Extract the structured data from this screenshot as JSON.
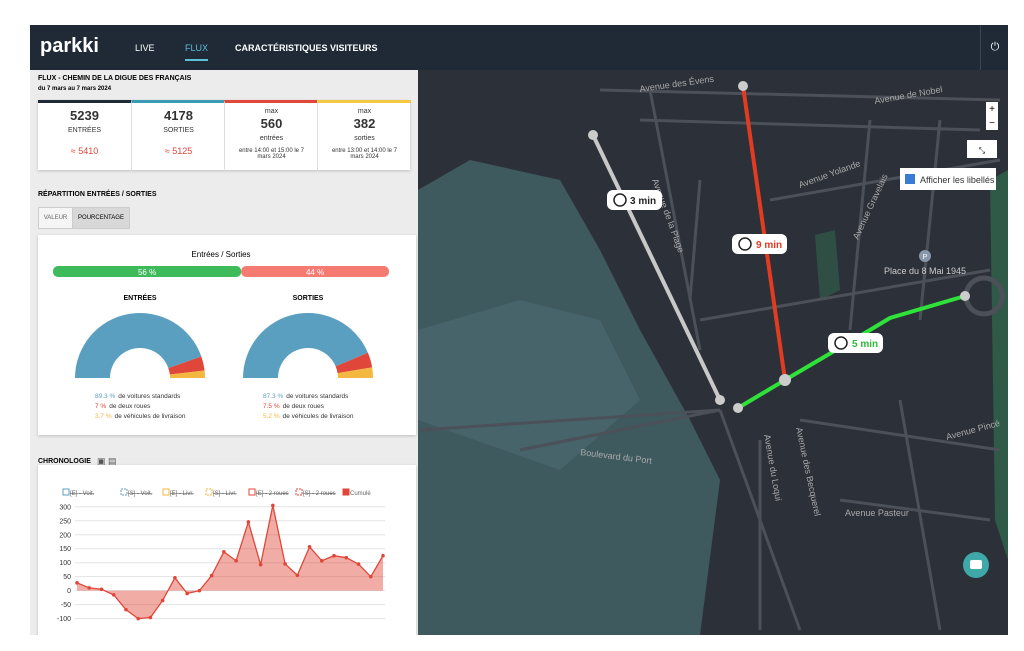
{
  "nav": {
    "brand": "parkki",
    "tabs": [
      "LIVE",
      "FLUX",
      "CARACTÉRISTIQUES VISITEURS"
    ]
  },
  "panel": {
    "title": "FLUX - CHEMIN DE LA DIGUE DES FRANÇAIS",
    "subtitle": "du 7 mars au 7 mars 2024",
    "stats": [
      {
        "value": "5239",
        "label": "ENTRÉES",
        "estimate": "≈ 5410"
      },
      {
        "value": "4178",
        "label": "SORTIES",
        "estimate": "≈ 5125"
      },
      {
        "prefix": "max",
        "value": "560",
        "label": "entrées",
        "note": "entre 14:00 et 15:00 le 7 mars 2024"
      },
      {
        "prefix": "max",
        "value": "382",
        "label": "sorties",
        "note": "entre 13:00 et 14:00 le 7 mars 2024"
      }
    ],
    "repartition_title": "RÉPARTITION ENTRÉES / SORTIES",
    "toggle": [
      "VALEUR",
      "POURCENTAGE"
    ]
  },
  "split": {
    "type": "bar",
    "title": "Entrées / Sorties",
    "values": [
      56,
      44
    ],
    "value_labels": [
      "56 %",
      "44 %"
    ],
    "colors": [
      "#3dba5a",
      "#f47a72"
    ]
  },
  "gauges": [
    {
      "type": "pie",
      "title": "ENTRÉES",
      "values": [
        89.3,
        7,
        3.7
      ],
      "value_labels": [
        "89.3 %",
        "7 %",
        "3.7 %"
      ],
      "labels": [
        "de voitures standards",
        "de deux roues",
        "de véhicules de livraison"
      ],
      "colors": [
        "#5b9fc0",
        "#e0463a",
        "#f4b740"
      ]
    },
    {
      "type": "pie",
      "title": "SORTIES",
      "values": [
        87.3,
        7.5,
        5.2
      ],
      "value_labels": [
        "87.3 %",
        "7.5 %",
        "5.2 %"
      ],
      "labels": [
        "de voitures standards",
        "de deux roues",
        "de véhicules de livraison"
      ],
      "colors": [
        "#5b9fc0",
        "#e0463a",
        "#f4b740"
      ]
    }
  ],
  "chronologie": {
    "type": "line",
    "title": "CHRONOLOGIE",
    "ylim": [
      -130,
      310
    ],
    "yticks": [
      300,
      250,
      200,
      150,
      100,
      50,
      0,
      -50,
      -100
    ],
    "grid": true,
    "series": [
      {
        "name": "[E] - Voit.",
        "color": "#5b9fc0",
        "hidden": true
      },
      {
        "name": "[S] - Voit.",
        "color": "#5b9fc0",
        "hidden": true
      },
      {
        "name": "[E] - Livr.",
        "color": "#f4b740",
        "hidden": true
      },
      {
        "name": "[S] - Livr.",
        "color": "#f4b740",
        "hidden": true
      },
      {
        "name": "[E] - 2 roues",
        "color": "#e0463a",
        "hidden": true
      },
      {
        "name": "[S] - 2 roues",
        "color": "#e0463a",
        "hidden": true
      },
      {
        "name": "Cumulé",
        "color": "#e0463a",
        "values": [
          28,
          10,
          5,
          -15,
          -68,
          -100,
          -96,
          -35,
          46,
          -10,
          0,
          54,
          139,
          107,
          246,
          93,
          305,
          96,
          55,
          157,
          107,
          125,
          118,
          95,
          50,
          125
        ]
      }
    ]
  },
  "map": {
    "routes": [
      "3 min",
      "9 min",
      "5 min"
    ],
    "toggle_labels": "Afficher les libellés",
    "place": "Place du 8 Mai 1945",
    "streets": [
      "Avenue des Évens",
      "Avenue de Nobel",
      "Avenue Yolande",
      "Avenue Gravelais",
      "Avenue de la Plage",
      "Boulevard du Port",
      "Avenue du Loqui",
      "Avenue des Becquerel",
      "Avenue Pasteur",
      "Avenue Pincé"
    ]
  }
}
